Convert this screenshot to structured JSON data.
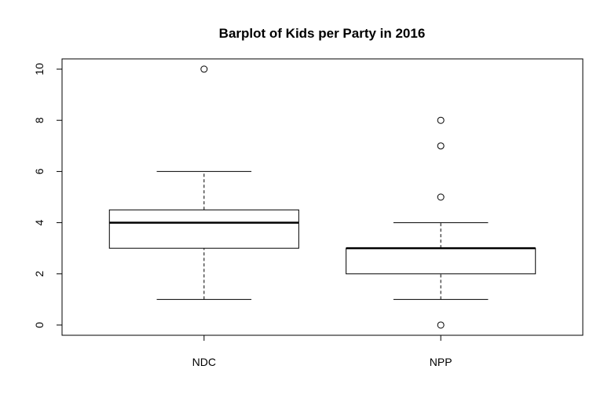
{
  "chart_data": {
    "type": "boxplot",
    "title": "Barplot of Kids per Party in 2016",
    "xlabel": "",
    "ylabel": "",
    "categories": [
      "NDC",
      "NPP"
    ],
    "ylim": [
      -0.4,
      10.4
    ],
    "yticks": [
      0,
      2,
      4,
      6,
      8,
      10
    ],
    "grid": false,
    "boxes": [
      {
        "category": "NDC",
        "whisker_low": 1,
        "q1": 3,
        "median": 4,
        "q3": 4.5,
        "whisker_high": 6,
        "outliers": [
          10
        ]
      },
      {
        "category": "NPP",
        "whisker_low": 1,
        "q1": 2,
        "median": 3,
        "q3": 3,
        "whisker_high": 4,
        "outliers": [
          0,
          5,
          7,
          8
        ]
      }
    ]
  }
}
